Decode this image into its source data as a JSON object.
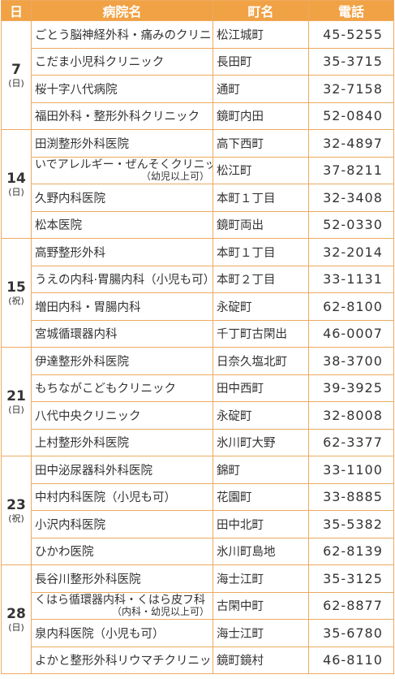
{
  "header": [
    "日",
    "病院名",
    "町名",
    "電話"
  ],
  "groups": [
    {
      "day": "7",
      "dow": "(日)",
      "rows": [
        {
          "name": "ごとう脳神経外科・痛みのクリニック",
          "town": "松江城町",
          "phone": "45-5255"
        },
        {
          "name": "こだま小児科クリニック",
          "town": "長田町",
          "phone": "35-3715"
        },
        {
          "name": "桜十字八代病院",
          "town": "通町",
          "phone": "32-7158"
        },
        {
          "name": "福田外科・整形外科クリニック",
          "town": "鏡町内田",
          "phone": "52-0840"
        }
      ]
    },
    {
      "day": "14",
      "dow": "(日)",
      "rows": [
        {
          "name": "田渕整形外科医院",
          "town": "高下西町",
          "phone": "32-4897"
        },
        {
          "name": "いでアレルギー・ぜんそくクリニック",
          "note": "（幼児以上可）",
          "town": "松江町",
          "phone": "37-8211"
        },
        {
          "name": "久野内科医院",
          "town": "本町１丁目",
          "phone": "32-3408"
        },
        {
          "name": "松本医院",
          "town": "鏡町両出",
          "phone": "52-0330"
        }
      ]
    },
    {
      "day": "15",
      "dow": "(祝)",
      "rows": [
        {
          "name": "高野整形外科",
          "town": "本町１丁目",
          "phone": "32-2014"
        },
        {
          "name": "うえの内科·胃腸内科（小児も可）",
          "town": "本町２丁目",
          "phone": "33-1131"
        },
        {
          "name": "増田内科・胃腸内科",
          "town": "永碇町",
          "phone": "62-8100"
        },
        {
          "name": "宮城循環器内科",
          "town": "千丁町古閑出",
          "phone": "46-0007"
        }
      ]
    },
    {
      "day": "21",
      "dow": "(日)",
      "rows": [
        {
          "name": "伊達整形外科医院",
          "town": "日奈久塩北町",
          "phone": "38-3700"
        },
        {
          "name": "もちながこどもクリニック",
          "town": "田中西町",
          "phone": "39-3925"
        },
        {
          "name": "八代中央クリニック",
          "town": "永碇町",
          "phone": "32-8008"
        },
        {
          "name": "上村整形外科医院",
          "town": "氷川町大野",
          "phone": "62-3377"
        }
      ]
    },
    {
      "day": "23",
      "dow": "(祝)",
      "rows": [
        {
          "name": "田中泌尿器科外科医院",
          "town": "錦町",
          "phone": "33-1100"
        },
        {
          "name": "中村内科医院（小児も可）",
          "town": "花園町",
          "phone": "33-8885"
        },
        {
          "name": "小沢内科医院",
          "town": "田中北町",
          "phone": "35-5382"
        },
        {
          "name": "ひかわ医院",
          "town": "氷川町島地",
          "phone": "62-8139"
        }
      ]
    },
    {
      "day": "28",
      "dow": "(日)",
      "rows": [
        {
          "name": "長谷川整形外科医院",
          "town": "海士江町",
          "phone": "35-3125"
        },
        {
          "name": "くはら循環器内科・くはら皮フ科",
          "note": "（内科・幼児以上可）",
          "town": "古閑中町",
          "phone": "62-8877"
        },
        {
          "name": "泉内科医院（小児も可）",
          "town": "海士江町",
          "phone": "35-6780"
        },
        {
          "name": "よかと整形外科リウマチクリニック",
          "town": "鏡町鏡村",
          "phone": "46-8110"
        }
      ]
    }
  ]
}
